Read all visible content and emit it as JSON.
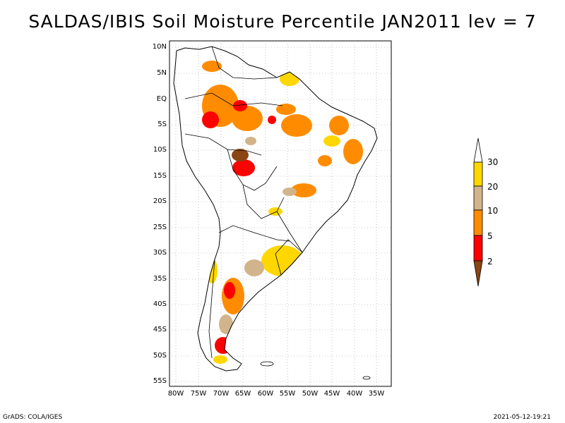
{
  "title": "SALDAS/IBIS Soil Moisture Percentile JAN2011 lev = 7",
  "lat_ticks": [
    "10N",
    "5N",
    "EQ",
    "5S",
    "10S",
    "15S",
    "20S",
    "25S",
    "30S",
    "35S",
    "40S",
    "45S",
    "50S",
    "55S"
  ],
  "lon_ticks": [
    "80W",
    "75W",
    "70W",
    "65W",
    "60W",
    "55W",
    "50W",
    "45W",
    "40W",
    "35W"
  ],
  "colorbar": {
    "labels": [
      "30",
      "20",
      "10",
      "5",
      "2"
    ],
    "colors": {
      "top": "#ffffff",
      "c20_30": "#ffd700",
      "c10_20": "#d2b48c",
      "c5_10": "#ff8c00",
      "c2_5": "#ff0000",
      "c_low": "#8b4513"
    }
  },
  "footer": {
    "left": "GrADS: COLA/IGES",
    "right": "2021-05-12-19:21"
  }
}
